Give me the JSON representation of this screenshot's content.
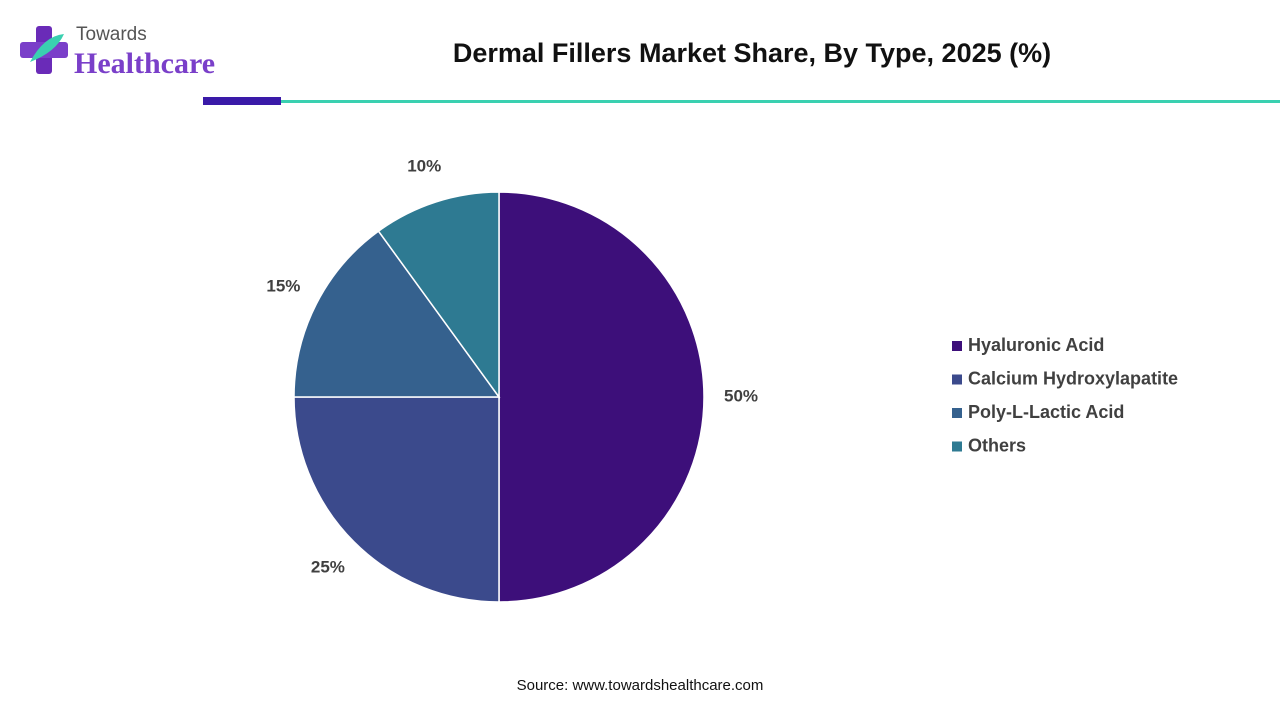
{
  "logo": {
    "line1": "Towards",
    "line2": "Healthcare"
  },
  "chart_data": {
    "type": "pie",
    "title": "Dermal Fillers Market Share, By Type, 2025 (%)",
    "categories": [
      "Hyaluronic Acid",
      "Calcium Hydroxylapatite",
      "Poly-L-Lactic Acid",
      "Others"
    ],
    "values": [
      50,
      25,
      15,
      10
    ],
    "value_labels": [
      "50%",
      "25%",
      "15%",
      "10%"
    ],
    "colors": [
      "#3d0f7a",
      "#3b4a8c",
      "#35618e",
      "#2e7a92"
    ],
    "legend": "right",
    "source": "Source: www.towardshealthcare.com"
  }
}
